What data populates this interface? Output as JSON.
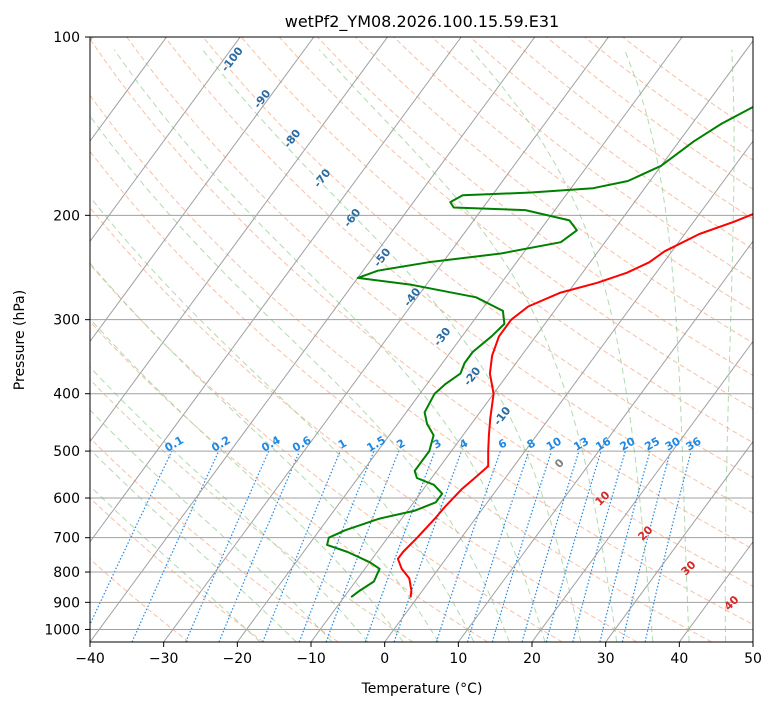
{
  "chart_data": {
    "type": "line",
    "title": "wetPf2_YM08.2026.100.15.59.E31",
    "xlabel": "Temperature (°C)",
    "ylabel": "Pressure (hPa)",
    "xlim": [
      -40,
      50
    ],
    "ylim": [
      1050,
      100
    ],
    "y_scale": "log",
    "x_ticks": [
      -40,
      -30,
      -20,
      -10,
      0,
      10,
      20,
      30,
      40,
      50
    ],
    "y_ticks": [
      100,
      200,
      300,
      400,
      500,
      600,
      700,
      800,
      900,
      1000
    ],
    "grid": true,
    "series": [
      {
        "role": "temperature",
        "color": "#ff0000",
        "points": [
          [
            -1,
            880
          ],
          [
            -1.5,
            860
          ],
          [
            -3,
            820
          ],
          [
            -5,
            790
          ],
          [
            -6.5,
            760
          ],
          [
            -6.5,
            740
          ],
          [
            -6,
            700
          ],
          [
            -5.5,
            650
          ],
          [
            -5.3,
            620
          ],
          [
            -4.8,
            580
          ],
          [
            -4,
            550
          ],
          [
            -3.5,
            530
          ],
          [
            -5,
            500
          ],
          [
            -6.5,
            470
          ],
          [
            -8,
            440
          ],
          [
            -10,
            400
          ],
          [
            -12.5,
            370
          ],
          [
            -14,
            345
          ],
          [
            -15,
            320
          ],
          [
            -15,
            300
          ],
          [
            -14,
            285
          ],
          [
            -11,
            270
          ],
          [
            -7,
            260
          ],
          [
            -4,
            250
          ],
          [
            -2,
            240
          ],
          [
            -1,
            230
          ],
          [
            2,
            215
          ],
          [
            5.5,
            205
          ],
          [
            8.5,
            195
          ],
          [
            11,
            185
          ],
          [
            13,
            170
          ],
          [
            15,
            155
          ],
          [
            17.5,
            140
          ],
          [
            20.5,
            125
          ],
          [
            23,
            115
          ],
          [
            25,
            108
          ],
          [
            27,
            100
          ]
        ]
      },
      {
        "role": "dewpoint",
        "color": "#008000",
        "points": [
          [
            -9,
            880
          ],
          [
            -8.5,
            860
          ],
          [
            -7.5,
            830
          ],
          [
            -8,
            790
          ],
          [
            -10,
            770
          ],
          [
            -14,
            740
          ],
          [
            -17.5,
            720
          ],
          [
            -18,
            700
          ],
          [
            -16.5,
            680
          ],
          [
            -13,
            650
          ],
          [
            -9,
            630
          ],
          [
            -7,
            610
          ],
          [
            -7,
            590
          ],
          [
            -9,
            570
          ],
          [
            -12,
            555
          ],
          [
            -13,
            540
          ],
          [
            -13,
            520
          ],
          [
            -13,
            500
          ],
          [
            -14,
            470
          ],
          [
            -16,
            450
          ],
          [
            -17.5,
            430
          ],
          [
            -18,
            400
          ],
          [
            -17.5,
            385
          ],
          [
            -16.5,
            370
          ],
          [
            -17,
            355
          ],
          [
            -17,
            340
          ],
          [
            -16,
            320
          ],
          [
            -15.5,
            305
          ],
          [
            -17,
            290
          ],
          [
            -22,
            275
          ],
          [
            -32,
            262
          ],
          [
            -40,
            255
          ],
          [
            -38,
            248
          ],
          [
            -32,
            240
          ],
          [
            -23,
            232
          ],
          [
            -16,
            222
          ],
          [
            -15,
            212
          ],
          [
            -17,
            204
          ],
          [
            -24,
            196
          ],
          [
            -34,
            194
          ],
          [
            -35,
            190
          ],
          [
            -34,
            185
          ],
          [
            -25,
            183
          ],
          [
            -17,
            180
          ],
          [
            -13,
            175
          ],
          [
            -10,
            165
          ],
          [
            -8,
            150
          ],
          [
            -6,
            140
          ],
          [
            -3,
            130
          ],
          [
            -1,
            120
          ],
          [
            1.5,
            110
          ],
          [
            4,
            100
          ]
        ]
      }
    ],
    "dry_adiabat_labels": [
      "-100",
      "-90",
      "-80",
      "-70",
      "-60",
      "-50",
      "-40",
      "-30",
      "-20",
      "-10"
    ],
    "moist_adiabat_labels": [
      "0",
      "10",
      "20",
      "30",
      "40"
    ],
    "mixing_ratio_labels": [
      "0.1",
      "0.2",
      "0.4",
      "0.6",
      "1",
      "1.5",
      "2",
      "3",
      "4",
      "6",
      "8",
      "10",
      "13",
      "16",
      "20",
      "25",
      "30",
      "36"
    ],
    "colors": {
      "temperature": "#ff0000",
      "dewpoint": "#008000",
      "dry_adiabat": "#f4a582",
      "moist_adiabat": "#9fcf9f",
      "mixing_ratio": "#1e88e5",
      "dry_label": "#2b6ca3",
      "moist_label_cold": "#808080",
      "moist_label_warm": "#d62728",
      "isotherm": "#a0a0a0",
      "isobar": "#a0a0a0",
      "dry_adiabat_warm": "#d2b48c"
    }
  }
}
